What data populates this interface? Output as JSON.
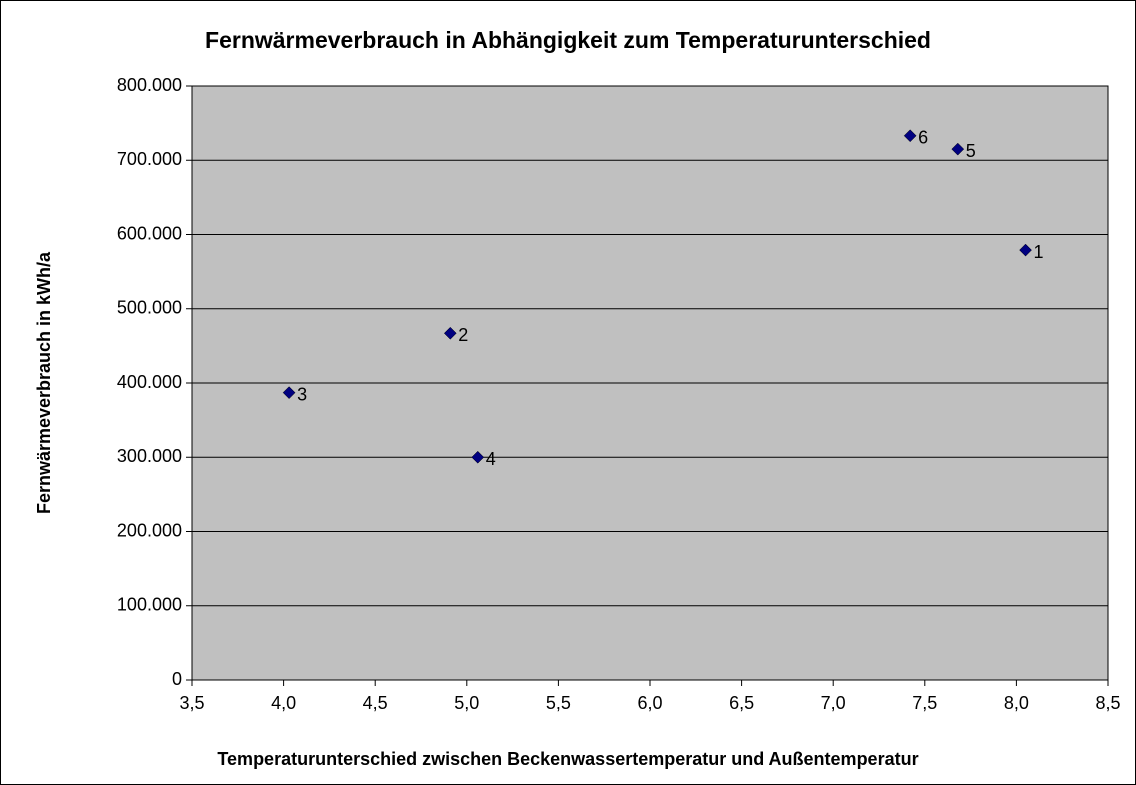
{
  "chart_data": {
    "type": "scatter",
    "title": "Fernwärmeverbrauch in Abhängigkeit zum Temperaturunterschied",
    "x_label": "Temperaturunterschied zwischen Beckenwassertemperatur und Außentemperatur",
    "y_label": "Fernwärmeverbrauch in kWh/a",
    "x": [
      8.05,
      4.91,
      4.03,
      5.06,
      7.68,
      7.42
    ],
    "series": [
      {
        "color": "#000080",
        "marker": "diamond",
        "values": [
          579000,
          467000,
          387000,
          300000,
          715000,
          733000
        ],
        "point_labels": [
          "1",
          "2",
          "3",
          "4",
          "5",
          "6"
        ]
      }
    ],
    "xlim": [
      3.5,
      8.5
    ],
    "xticks": [
      {
        "value": 3.5,
        "label": "3,5"
      },
      {
        "value": 4.0,
        "label": "4,0"
      },
      {
        "value": 4.5,
        "label": "4,5"
      },
      {
        "value": 5.0,
        "label": "5,0"
      },
      {
        "value": 5.5,
        "label": "5,5"
      },
      {
        "value": 6.0,
        "label": "6,0"
      },
      {
        "value": 6.5,
        "label": "6,5"
      },
      {
        "value": 7.0,
        "label": "7,0"
      },
      {
        "value": 7.5,
        "label": "7,5"
      },
      {
        "value": 8.0,
        "label": "8,0"
      },
      {
        "value": 8.5,
        "label": "8,5"
      }
    ],
    "ylim": [
      0,
      800000
    ],
    "yticks": [
      0,
      {
        "value": 100000,
        "label": "100.000"
      },
      {
        "value": 200000,
        "label": "200.000"
      },
      {
        "value": 300000,
        "label": "300.000"
      },
      {
        "value": 400000,
        "label": "400.000"
      },
      {
        "value": 500000,
        "label": "500.000"
      },
      {
        "value": 600000,
        "label": "600.000"
      },
      {
        "value": 700000,
        "label": "700.000"
      },
      {
        "value": 800000,
        "label": "800.000"
      }
    ],
    "grid": true,
    "plot_background": "#c0c0c0"
  }
}
